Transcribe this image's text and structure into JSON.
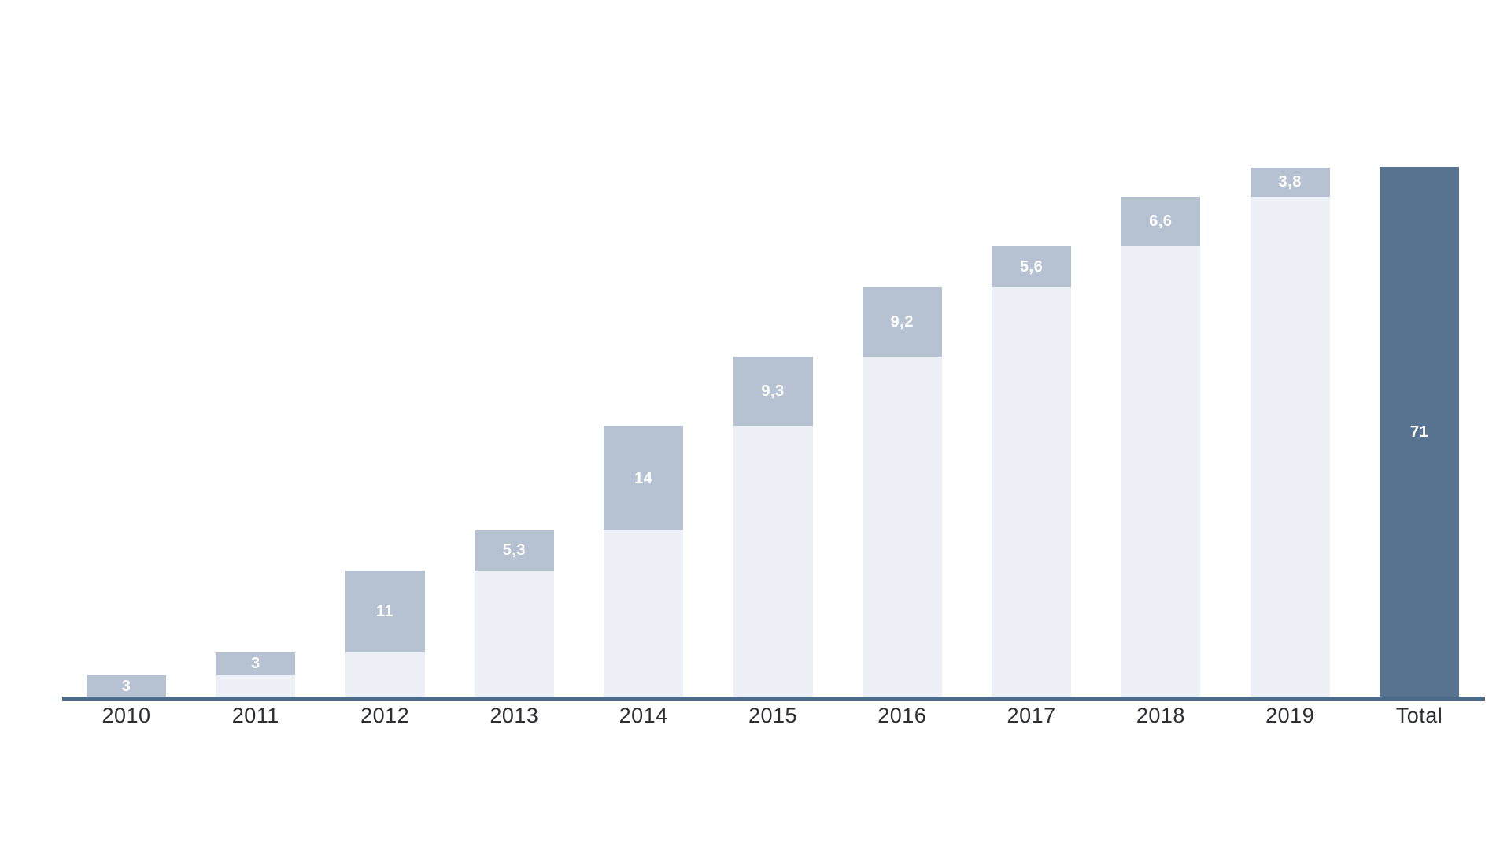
{
  "chart_data": {
    "type": "bar",
    "subtype": "cumulative-stacked",
    "title": "",
    "xlabel": "",
    "ylabel": "",
    "ylim": [
      0,
      75
    ],
    "grid": false,
    "legend": null,
    "categories": [
      "2010",
      "2011",
      "2012",
      "2013",
      "2014",
      "2015",
      "2016",
      "2017",
      "2018",
      "2019",
      "Total"
    ],
    "series": [
      {
        "name": "cumulative-base",
        "values": [
          0,
          3,
          6,
          17,
          22.3,
          36.3,
          45.6,
          54.8,
          60.4,
          67,
          0
        ]
      },
      {
        "name": "yearly-increment",
        "values": [
          3,
          3,
          11,
          5.3,
          14,
          9.3,
          9.2,
          5.6,
          6.6,
          3.8,
          71
        ]
      }
    ],
    "bar_labels": [
      "3",
      "3",
      "11",
      "5,3",
      "14",
      "9,3",
      "9,2",
      "5,6",
      "6,6",
      "3,8",
      "71"
    ],
    "cumulative_totals": [
      3,
      6,
      17,
      22.3,
      36.3,
      45.6,
      54.8,
      60.4,
      67,
      70.8,
      71
    ]
  },
  "colors": {
    "background": "#ffffff",
    "bar_base_fill": "#edf1f7",
    "bar_increment_fill": "#b6c2d2",
    "total_bar_fill": "#57738f",
    "axis_line": "#4d6b89",
    "category_text": "#2c2e32",
    "value_text": "#ffffff"
  }
}
